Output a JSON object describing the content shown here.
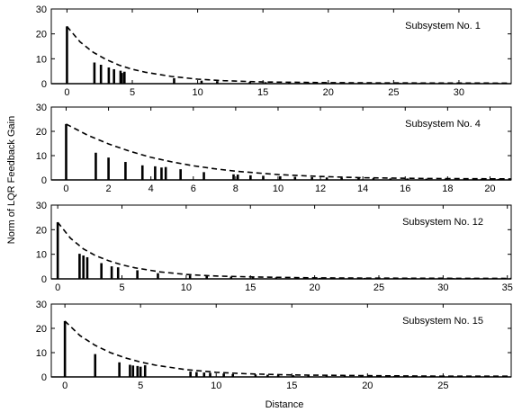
{
  "figure": {
    "xlabel": "Distance",
    "ylabel": "Norm of LQR Feedback Gain"
  },
  "chart_data": [
    {
      "type": "bar",
      "title": "Subsystem No. 1",
      "xlim": [
        -1.2,
        34
      ],
      "ylim": [
        0,
        30
      ],
      "xticks": [
        0,
        5,
        10,
        15,
        20,
        25,
        30
      ],
      "yticks": [
        0,
        10,
        20,
        30
      ],
      "stems": [
        {
          "x": 0,
          "y": 23
        },
        {
          "x": 2.1,
          "y": 8.5
        },
        {
          "x": 2.6,
          "y": 7.6
        },
        {
          "x": 3.2,
          "y": 6.5
        },
        {
          "x": 3.6,
          "y": 5.8
        },
        {
          "x": 4.1,
          "y": 5.2
        },
        {
          "x": 4.2,
          "y": 4.3
        },
        {
          "x": 4.4,
          "y": 4.8
        },
        {
          "x": 8.2,
          "y": 2.2
        },
        {
          "x": 10.3,
          "y": 1.2
        },
        {
          "x": 11.5,
          "y": 1.0
        },
        {
          "x": 14.0,
          "y": 0.7
        },
        {
          "x": 15.2,
          "y": 0.6
        },
        {
          "x": 17.0,
          "y": 0.5
        },
        {
          "x": 18.5,
          "y": 0.4
        },
        {
          "x": 19.6,
          "y": 0.4
        },
        {
          "x": 21.0,
          "y": 0.4
        },
        {
          "x": 22.5,
          "y": 0.3
        },
        {
          "x": 24.0,
          "y": 0.3
        },
        {
          "x": 25.5,
          "y": 0.3
        },
        {
          "x": 27.0,
          "y": 0.3
        },
        {
          "x": 28.5,
          "y": 0.3
        },
        {
          "x": 30.0,
          "y": 0.3
        },
        {
          "x": 31.5,
          "y": 0.3
        },
        {
          "x": 33.0,
          "y": 0.3
        }
      ],
      "envelope": [
        [
          0,
          23
        ],
        [
          1,
          16.8
        ],
        [
          2,
          12.6
        ],
        [
          3,
          9.7
        ],
        [
          4,
          7.4
        ],
        [
          5,
          5.8
        ],
        [
          6,
          4.6
        ],
        [
          8,
          2.9
        ],
        [
          10,
          1.8
        ],
        [
          12,
          1.2
        ],
        [
          15,
          0.7
        ],
        [
          20,
          0.4
        ],
        [
          25,
          0.3
        ],
        [
          34,
          0.2
        ]
      ]
    },
    {
      "type": "bar",
      "title": "Subsystem No. 4",
      "xlim": [
        -0.7,
        21
      ],
      "ylim": [
        0,
        30
      ],
      "xticks": [
        0,
        2,
        4,
        6,
        8,
        10,
        12,
        14,
        16,
        18,
        20
      ],
      "yticks": [
        0,
        10,
        20,
        30
      ],
      "stems": [
        {
          "x": 0,
          "y": 23
        },
        {
          "x": 1.4,
          "y": 11.2
        },
        {
          "x": 2.0,
          "y": 9.2
        },
        {
          "x": 2.8,
          "y": 7.4
        },
        {
          "x": 3.6,
          "y": 6.0
        },
        {
          "x": 4.2,
          "y": 5.6
        },
        {
          "x": 4.5,
          "y": 5.1
        },
        {
          "x": 4.7,
          "y": 5.3
        },
        {
          "x": 5.4,
          "y": 4.4
        },
        {
          "x": 6.5,
          "y": 3.2
        },
        {
          "x": 7.9,
          "y": 2.3
        },
        {
          "x": 8.1,
          "y": 2.2
        },
        {
          "x": 8.7,
          "y": 1.9
        },
        {
          "x": 9.3,
          "y": 1.7
        },
        {
          "x": 10.1,
          "y": 1.5
        },
        {
          "x": 10.8,
          "y": 1.3
        },
        {
          "x": 11.6,
          "y": 1.1
        },
        {
          "x": 12.3,
          "y": 1.0
        },
        {
          "x": 13.0,
          "y": 0.9
        },
        {
          "x": 13.8,
          "y": 0.8
        },
        {
          "x": 14.5,
          "y": 0.7
        },
        {
          "x": 15.3,
          "y": 0.6
        },
        {
          "x": 16.1,
          "y": 0.6
        },
        {
          "x": 17.0,
          "y": 0.5
        },
        {
          "x": 17.9,
          "y": 0.5
        },
        {
          "x": 18.8,
          "y": 0.4
        },
        {
          "x": 19.6,
          "y": 0.4
        },
        {
          "x": 20.4,
          "y": 0.4
        }
      ],
      "envelope": [
        [
          0,
          23
        ],
        [
          1,
          18.5
        ],
        [
          2,
          14.8
        ],
        [
          3,
          11.8
        ],
        [
          4,
          9.3
        ],
        [
          5,
          7.4
        ],
        [
          6,
          5.8
        ],
        [
          7,
          4.6
        ],
        [
          8,
          3.6
        ],
        [
          10,
          2.2
        ],
        [
          12,
          1.4
        ],
        [
          14,
          0.9
        ],
        [
          17,
          0.6
        ],
        [
          21,
          0.4
        ]
      ]
    },
    {
      "type": "bar",
      "title": "Subsystem No. 12",
      "xlim": [
        -0.5,
        35.3
      ],
      "ylim": [
        0,
        30
      ],
      "xticks": [
        0,
        5,
        10,
        15,
        20,
        25,
        30,
        35
      ],
      "yticks": [
        0,
        10,
        20,
        30
      ],
      "stems": [
        {
          "x": 0,
          "y": 23
        },
        {
          "x": 1.7,
          "y": 10.2
        },
        {
          "x": 2.0,
          "y": 9.5
        },
        {
          "x": 2.3,
          "y": 8.8
        },
        {
          "x": 3.4,
          "y": 6.4
        },
        {
          "x": 4.2,
          "y": 5.1
        },
        {
          "x": 4.7,
          "y": 4.7
        },
        {
          "x": 6.2,
          "y": 3.5
        },
        {
          "x": 7.8,
          "y": 2.3
        },
        {
          "x": 10.3,
          "y": 1.4
        },
        {
          "x": 11.6,
          "y": 1.1
        },
        {
          "x": 13.5,
          "y": 0.9
        },
        {
          "x": 15.2,
          "y": 0.7
        },
        {
          "x": 17.0,
          "y": 0.6
        },
        {
          "x": 18.6,
          "y": 0.5
        },
        {
          "x": 20.4,
          "y": 0.4
        },
        {
          "x": 22.0,
          "y": 0.4
        },
        {
          "x": 23.9,
          "y": 0.4
        },
        {
          "x": 25.6,
          "y": 0.3
        },
        {
          "x": 27.3,
          "y": 0.3
        },
        {
          "x": 29.0,
          "y": 0.3
        },
        {
          "x": 30.8,
          "y": 0.3
        },
        {
          "x": 32.4,
          "y": 0.3
        },
        {
          "x": 34.1,
          "y": 0.3
        }
      ],
      "envelope": [
        [
          0,
          23
        ],
        [
          1,
          16.5
        ],
        [
          2,
          12.2
        ],
        [
          3,
          9.3
        ],
        [
          4,
          7.3
        ],
        [
          5,
          5.7
        ],
        [
          6,
          4.5
        ],
        [
          8,
          2.8
        ],
        [
          10,
          1.8
        ],
        [
          12,
          1.2
        ],
        [
          15,
          0.8
        ],
        [
          20,
          0.4
        ],
        [
          25,
          0.3
        ],
        [
          35.3,
          0.2
        ]
      ]
    },
    {
      "type": "bar",
      "title": "Subsystem No. 15",
      "xlim": [
        -0.9,
        29.5
      ],
      "ylim": [
        0,
        30
      ],
      "xticks": [
        0,
        5,
        10,
        15,
        20,
        25
      ],
      "yticks": [
        0,
        10,
        20,
        30
      ],
      "stems": [
        {
          "x": 0,
          "y": 23
        },
        {
          "x": 2.0,
          "y": 9.4
        },
        {
          "x": 3.6,
          "y": 6.0
        },
        {
          "x": 4.3,
          "y": 5.0
        },
        {
          "x": 4.5,
          "y": 4.7
        },
        {
          "x": 4.8,
          "y": 4.5
        },
        {
          "x": 5.0,
          "y": 4.2
        },
        {
          "x": 5.3,
          "y": 4.8
        },
        {
          "x": 8.3,
          "y": 2.2
        },
        {
          "x": 8.7,
          "y": 2.0
        },
        {
          "x": 9.2,
          "y": 1.8
        },
        {
          "x": 9.6,
          "y": 1.7
        },
        {
          "x": 10.5,
          "y": 1.4
        },
        {
          "x": 11.1,
          "y": 1.2
        },
        {
          "x": 12.6,
          "y": 1.0
        },
        {
          "x": 13.4,
          "y": 0.9
        },
        {
          "x": 14.1,
          "y": 0.8
        },
        {
          "x": 15.1,
          "y": 0.7
        },
        {
          "x": 16.1,
          "y": 0.6
        },
        {
          "x": 17.3,
          "y": 0.6
        },
        {
          "x": 18.5,
          "y": 0.5
        },
        {
          "x": 19.6,
          "y": 0.5
        },
        {
          "x": 20.7,
          "y": 0.4
        },
        {
          "x": 21.8,
          "y": 0.4
        },
        {
          "x": 23.0,
          "y": 0.4
        },
        {
          "x": 24.2,
          "y": 0.4
        },
        {
          "x": 25.5,
          "y": 0.3
        },
        {
          "x": 26.7,
          "y": 0.3
        },
        {
          "x": 27.8,
          "y": 0.3
        },
        {
          "x": 29.0,
          "y": 0.3
        }
      ],
      "envelope": [
        [
          0,
          23
        ],
        [
          1,
          17.0
        ],
        [
          2,
          13.0
        ],
        [
          3,
          10.0
        ],
        [
          4,
          7.8
        ],
        [
          5,
          6.1
        ],
        [
          6,
          4.8
        ],
        [
          8,
          3.0
        ],
        [
          10,
          1.9
        ],
        [
          12,
          1.3
        ],
        [
          15,
          0.8
        ],
        [
          20,
          0.5
        ],
        [
          25,
          0.3
        ],
        [
          29.5,
          0.3
        ]
      ]
    }
  ]
}
